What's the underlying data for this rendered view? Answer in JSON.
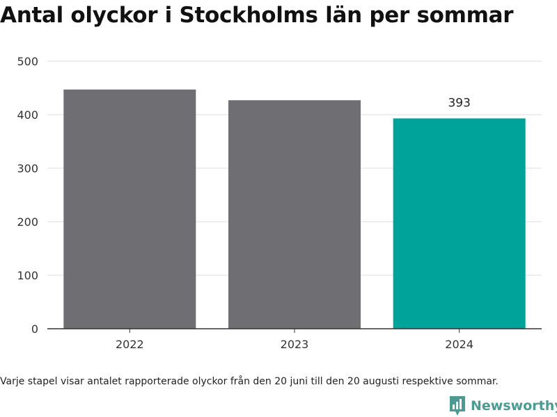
{
  "title": "Antal olyckor i Stockholms län per sommar",
  "footnote": "Varje stapel visar antalet rapporterade olyckor från den 20 juni till den 20 augusti respektive sommar.",
  "brand": "Newsworthy",
  "colors": {
    "bar_default": "#6f6e73",
    "bar_highlight": "#00a39a",
    "grid": "#dddddd",
    "axis": "#333333",
    "brand": "#4a9b92"
  },
  "chart_data": {
    "type": "bar",
    "title": "Antal olyckor i Stockholms län per sommar",
    "categories": [
      "2022",
      "2023",
      "2024"
    ],
    "values": [
      447,
      427,
      393
    ],
    "highlight": [
      false,
      false,
      true
    ],
    "data_labels": [
      "",
      "",
      "393"
    ],
    "ylim": [
      0,
      500
    ],
    "yticks": [
      0,
      100,
      200,
      300,
      400,
      500
    ],
    "grid": true,
    "legend": "none"
  }
}
